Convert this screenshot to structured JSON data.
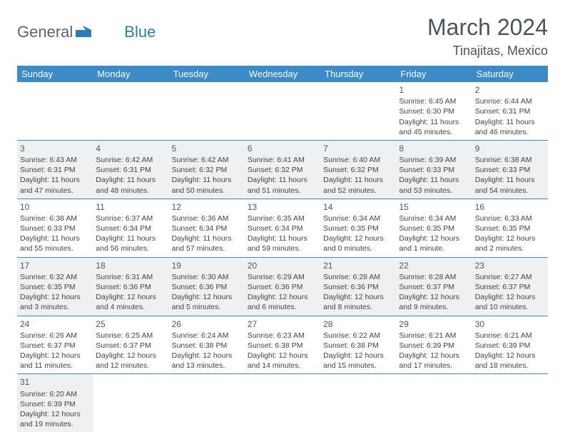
{
  "brand": {
    "part1": "General",
    "part2": "Blue"
  },
  "title": "March 2024",
  "location": "Tinajitas, Mexico",
  "colors": {
    "header_bg": "#3b8bc9",
    "header_text": "#ffffff",
    "alt_row_bg": "#eef0f2",
    "row_bg": "#ffffff",
    "border": "#3b8bc9",
    "title_color": "#4a5560",
    "logo_gray": "#5a6570",
    "logo_blue": "#2b7bbd"
  },
  "day_headers": [
    "Sunday",
    "Monday",
    "Tuesday",
    "Wednesday",
    "Thursday",
    "Friday",
    "Saturday"
  ],
  "weeks": [
    [
      null,
      null,
      null,
      null,
      null,
      {
        "n": "1",
        "sr": "6:45 AM",
        "ss": "6:30 PM",
        "dl": "11 hours and 45 minutes."
      },
      {
        "n": "2",
        "sr": "6:44 AM",
        "ss": "6:31 PM",
        "dl": "11 hours and 46 minutes."
      }
    ],
    [
      {
        "n": "3",
        "sr": "6:43 AM",
        "ss": "6:31 PM",
        "dl": "11 hours and 47 minutes."
      },
      {
        "n": "4",
        "sr": "6:42 AM",
        "ss": "6:31 PM",
        "dl": "11 hours and 48 minutes."
      },
      {
        "n": "5",
        "sr": "6:42 AM",
        "ss": "6:32 PM",
        "dl": "11 hours and 50 minutes."
      },
      {
        "n": "6",
        "sr": "6:41 AM",
        "ss": "6:32 PM",
        "dl": "11 hours and 51 minutes."
      },
      {
        "n": "7",
        "sr": "6:40 AM",
        "ss": "6:32 PM",
        "dl": "11 hours and 52 minutes."
      },
      {
        "n": "8",
        "sr": "6:39 AM",
        "ss": "6:33 PM",
        "dl": "11 hours and 53 minutes."
      },
      {
        "n": "9",
        "sr": "6:38 AM",
        "ss": "6:33 PM",
        "dl": "11 hours and 54 minutes."
      }
    ],
    [
      {
        "n": "10",
        "sr": "6:38 AM",
        "ss": "6:33 PM",
        "dl": "11 hours and 55 minutes."
      },
      {
        "n": "11",
        "sr": "6:37 AM",
        "ss": "6:34 PM",
        "dl": "11 hours and 56 minutes."
      },
      {
        "n": "12",
        "sr": "6:36 AM",
        "ss": "6:34 PM",
        "dl": "11 hours and 57 minutes."
      },
      {
        "n": "13",
        "sr": "6:35 AM",
        "ss": "6:34 PM",
        "dl": "11 hours and 59 minutes."
      },
      {
        "n": "14",
        "sr": "6:34 AM",
        "ss": "6:35 PM",
        "dl": "12 hours and 0 minutes."
      },
      {
        "n": "15",
        "sr": "6:34 AM",
        "ss": "6:35 PM",
        "dl": "12 hours and 1 minute."
      },
      {
        "n": "16",
        "sr": "6:33 AM",
        "ss": "6:35 PM",
        "dl": "12 hours and 2 minutes."
      }
    ],
    [
      {
        "n": "17",
        "sr": "6:32 AM",
        "ss": "6:35 PM",
        "dl": "12 hours and 3 minutes."
      },
      {
        "n": "18",
        "sr": "6:31 AM",
        "ss": "6:36 PM",
        "dl": "12 hours and 4 minutes."
      },
      {
        "n": "19",
        "sr": "6:30 AM",
        "ss": "6:36 PM",
        "dl": "12 hours and 5 minutes."
      },
      {
        "n": "20",
        "sr": "6:29 AM",
        "ss": "6:36 PM",
        "dl": "12 hours and 6 minutes."
      },
      {
        "n": "21",
        "sr": "6:28 AM",
        "ss": "6:36 PM",
        "dl": "12 hours and 8 minutes."
      },
      {
        "n": "22",
        "sr": "6:28 AM",
        "ss": "6:37 PM",
        "dl": "12 hours and 9 minutes."
      },
      {
        "n": "23",
        "sr": "6:27 AM",
        "ss": "6:37 PM",
        "dl": "12 hours and 10 minutes."
      }
    ],
    [
      {
        "n": "24",
        "sr": "6:26 AM",
        "ss": "6:37 PM",
        "dl": "12 hours and 11 minutes."
      },
      {
        "n": "25",
        "sr": "6:25 AM",
        "ss": "6:37 PM",
        "dl": "12 hours and 12 minutes."
      },
      {
        "n": "26",
        "sr": "6:24 AM",
        "ss": "6:38 PM",
        "dl": "12 hours and 13 minutes."
      },
      {
        "n": "27",
        "sr": "6:23 AM",
        "ss": "6:38 PM",
        "dl": "12 hours and 14 minutes."
      },
      {
        "n": "28",
        "sr": "6:22 AM",
        "ss": "6:38 PM",
        "dl": "12 hours and 15 minutes."
      },
      {
        "n": "29",
        "sr": "6:21 AM",
        "ss": "6:39 PM",
        "dl": "12 hours and 17 minutes."
      },
      {
        "n": "30",
        "sr": "6:21 AM",
        "ss": "6:39 PM",
        "dl": "12 hours and 18 minutes."
      }
    ],
    [
      {
        "n": "31",
        "sr": "6:20 AM",
        "ss": "6:39 PM",
        "dl": "12 hours and 19 minutes."
      },
      null,
      null,
      null,
      null,
      null,
      null
    ]
  ],
  "labels": {
    "sunrise": "Sunrise:",
    "sunset": "Sunset:",
    "daylight": "Daylight:"
  }
}
